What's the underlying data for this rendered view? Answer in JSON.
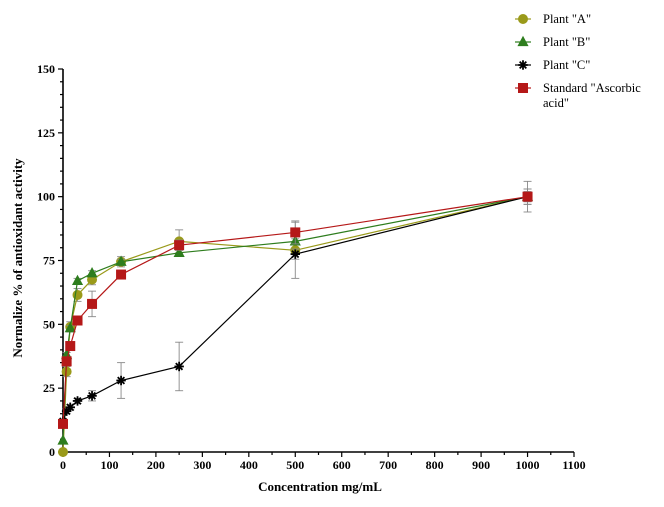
{
  "chart_data": {
    "type": "line",
    "xlabel": "Concentration mg/mL",
    "ylabel": "Normalize % of antioxidant activity",
    "xlim": [
      0,
      1100
    ],
    "ylim": [
      0,
      150
    ],
    "x_ticks": [
      0,
      100,
      200,
      300,
      400,
      500,
      600,
      700,
      800,
      900,
      1000,
      1100
    ],
    "y_ticks": [
      0,
      25,
      50,
      75,
      100,
      125,
      150
    ],
    "legend_position": "top-right",
    "series": [
      {
        "name": "Plant \"A\"",
        "color": "#9a9a1a",
        "marker": "circle",
        "x": [
          0,
          7.8,
          15.6,
          31.25,
          62.5,
          125,
          250,
          500,
          1000
        ],
        "y": [
          0,
          31.5,
          49,
          61.5,
          67.5,
          74.5,
          82.5,
          79,
          100
        ],
        "err": [
          0,
          2,
          2,
          2.5,
          2,
          2,
          4.5,
          11,
          6
        ]
      },
      {
        "name": "Plant \"B\"",
        "color": "#2e7d1e",
        "marker": "triangle",
        "x": [
          0,
          7.8,
          15.6,
          31.25,
          62.5,
          125,
          250,
          500,
          1000
        ],
        "y": [
          4.5,
          38,
          48.5,
          67,
          70,
          74.5,
          78,
          82.5,
          100
        ],
        "err": [
          0,
          1,
          1,
          1,
          1,
          1,
          1,
          1,
          2
        ]
      },
      {
        "name": "Plant \"C\"",
        "color": "#000000",
        "marker": "star",
        "x": [
          0,
          7.8,
          15.6,
          31.25,
          62.5,
          125,
          250,
          500,
          1000
        ],
        "y": [
          12,
          16,
          17.5,
          20,
          22,
          28,
          33.5,
          77.5,
          100
        ],
        "err": [
          0,
          1,
          1,
          1,
          2,
          7,
          9.5,
          2,
          3
        ]
      },
      {
        "name": "Standard \"Ascorbic acid\"",
        "color": "#b51818",
        "marker": "square",
        "x": [
          0,
          7.8,
          15.6,
          31.25,
          62.5,
          125,
          250,
          500,
          1000
        ],
        "y": [
          11,
          35.5,
          41.5,
          51.5,
          58,
          69.5,
          81,
          86,
          100
        ],
        "err": [
          0,
          1,
          1,
          1.5,
          5,
          1,
          2,
          4.5,
          3
        ]
      }
    ]
  }
}
